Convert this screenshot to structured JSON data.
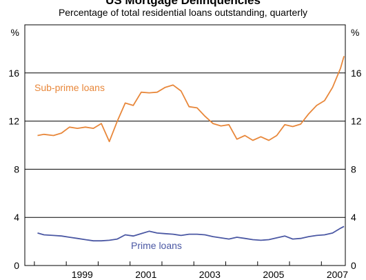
{
  "chart_data": {
    "type": "line",
    "title": "US Mortgage Delinquencies",
    "subtitle": "Percentage of total residential loans outstanding, quarterly",
    "y_unit_left": "%",
    "y_unit_right": "%",
    "ylim": [
      0,
      20
    ],
    "yticks": [
      "0",
      "4",
      "8",
      "12",
      "16"
    ],
    "xlim": [
      1997.7,
      2007.75
    ],
    "xtick_labels": [
      "1999",
      "2001",
      "2003",
      "2005",
      "2007"
    ],
    "xtick_positions": [
      1999.5,
      2001.5,
      2003.5,
      2005.5,
      2007.5
    ],
    "grid": "horizontal",
    "legend": "inline labels",
    "series": [
      {
        "name": "Sub-prime loans",
        "color": "#e8873a",
        "x": [
          1998.1,
          1998.3,
          1998.6,
          1998.85,
          1999.1,
          1999.35,
          1999.6,
          1999.85,
          2000.1,
          2000.35,
          2000.6,
          2000.85,
          2001.1,
          2001.35,
          2001.6,
          2001.85,
          2002.1,
          2002.35,
          2002.6,
          2002.85,
          2003.1,
          2003.35,
          2003.6,
          2003.85,
          2004.1,
          2004.35,
          2004.6,
          2004.85,
          2005.1,
          2005.35,
          2005.6,
          2005.85,
          2006.1,
          2006.35,
          2006.6,
          2006.85,
          2007.1,
          2007.35,
          2007.6
        ],
        "values": [
          10.8,
          10.9,
          10.8,
          11.0,
          11.5,
          11.4,
          11.5,
          11.4,
          11.8,
          10.3,
          12.0,
          13.5,
          13.3,
          14.4,
          14.35,
          14.4,
          14.8,
          15.0,
          14.5,
          13.2,
          13.1,
          12.4,
          11.8,
          11.6,
          11.7,
          10.5,
          10.8,
          10.4,
          10.7,
          10.4,
          10.8,
          11.7,
          11.55,
          11.75,
          12.6,
          13.3,
          13.7,
          14.8,
          16.4
        ]
      },
      {
        "name": "Prime loans",
        "color": "#4a57a3",
        "x": [
          1998.1,
          1998.3,
          1998.6,
          1998.85,
          1999.1,
          1999.35,
          1999.6,
          1999.85,
          2000.1,
          2000.35,
          2000.6,
          2000.85,
          2001.1,
          2001.35,
          2001.6,
          2001.85,
          2002.1,
          2002.35,
          2002.6,
          2002.85,
          2003.1,
          2003.35,
          2003.6,
          2003.85,
          2004.1,
          2004.35,
          2004.6,
          2004.85,
          2005.1,
          2005.35,
          2005.6,
          2005.85,
          2006.1,
          2006.35,
          2006.6,
          2006.85,
          2007.1,
          2007.35,
          2007.6
        ],
        "values": [
          2.7,
          2.55,
          2.5,
          2.45,
          2.35,
          2.25,
          2.15,
          2.05,
          2.05,
          2.1,
          2.2,
          2.55,
          2.45,
          2.65,
          2.85,
          2.7,
          2.65,
          2.6,
          2.5,
          2.6,
          2.6,
          2.55,
          2.4,
          2.3,
          2.2,
          2.35,
          2.25,
          2.15,
          2.1,
          2.15,
          2.3,
          2.45,
          2.2,
          2.25,
          2.4,
          2.5,
          2.55,
          2.7,
          3.1
        ]
      }
    ],
    "last_points": {
      "sub_prime": 17.4,
      "prime": 3.25
    },
    "series_labels": {
      "sub_prime": "Sub-prime loans",
      "prime": "Prime loans"
    }
  }
}
